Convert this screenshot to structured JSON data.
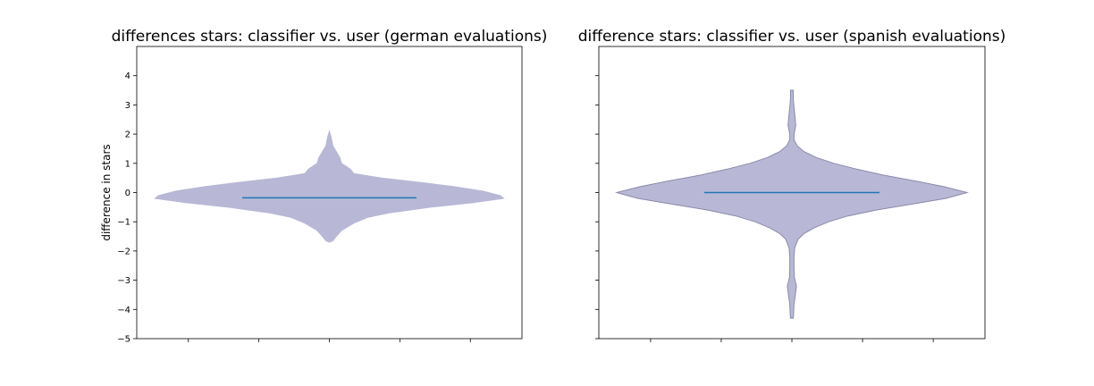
{
  "chart_data": [
    {
      "type": "violin",
      "title": "differences stars: classifier vs. user (german evaluations)",
      "xlabel": "",
      "ylabel": "difference in stars",
      "ylim": [
        -5,
        5
      ],
      "yticks": [
        -5,
        -4,
        -3,
        -2,
        -1,
        0,
        1,
        2,
        3,
        4
      ],
      "ytick_labels": [
        "−5",
        "−4",
        "−3",
        "−2",
        "−1",
        "0",
        "1",
        "2",
        "3",
        "4"
      ],
      "show_ytick_labels": true,
      "xticks_count": 5,
      "fill_color": "#b8b8d6",
      "edge_color": "#b8b8d6",
      "median_color": "#1f77b4",
      "median": -0.18,
      "profile": [
        {
          "y": 2.1,
          "w": 0.0
        },
        {
          "y": 1.9,
          "w": 0.01
        },
        {
          "y": 1.6,
          "w": 0.02
        },
        {
          "y": 1.4,
          "w": 0.04
        },
        {
          "y": 1.2,
          "w": 0.06
        },
        {
          "y": 1.0,
          "w": 0.07
        },
        {
          "y": 0.8,
          "w": 0.12
        },
        {
          "y": 0.65,
          "w": 0.14
        },
        {
          "y": 0.5,
          "w": 0.3
        },
        {
          "y": 0.35,
          "w": 0.52
        },
        {
          "y": 0.2,
          "w": 0.72
        },
        {
          "y": 0.05,
          "w": 0.88
        },
        {
          "y": -0.1,
          "w": 0.98
        },
        {
          "y": -0.2,
          "w": 1.0
        },
        {
          "y": -0.35,
          "w": 0.82
        },
        {
          "y": -0.5,
          "w": 0.58
        },
        {
          "y": -0.7,
          "w": 0.34
        },
        {
          "y": -0.85,
          "w": 0.22
        },
        {
          "y": -1.05,
          "w": 0.14
        },
        {
          "y": -1.3,
          "w": 0.07
        },
        {
          "y": -1.5,
          "w": 0.04
        },
        {
          "y": -1.65,
          "w": 0.02
        },
        {
          "y": -1.7,
          "w": 0.0
        }
      ]
    },
    {
      "type": "violin",
      "title": "difference stars: classifier vs. user (spanish evaluations)",
      "xlabel": "",
      "ylabel": "",
      "ylim": [
        -5,
        5
      ],
      "yticks": [
        -5,
        -4,
        -3,
        -2,
        -1,
        0,
        1,
        2,
        3,
        4
      ],
      "ytick_labels": [],
      "show_ytick_labels": false,
      "xticks_count": 5,
      "fill_color": "#b8b8d6",
      "edge_color": "#8a8aa8",
      "median_color": "#1f77b4",
      "median": 0.0,
      "profile": [
        {
          "y": 3.5,
          "w": 0.008
        },
        {
          "y": 3.2,
          "w": 0.008
        },
        {
          "y": 2.9,
          "w": 0.012
        },
        {
          "y": 2.6,
          "w": 0.018
        },
        {
          "y": 2.3,
          "w": 0.022
        },
        {
          "y": 2.0,
          "w": 0.012
        },
        {
          "y": 1.8,
          "w": 0.012
        },
        {
          "y": 1.6,
          "w": 0.03
        },
        {
          "y": 1.4,
          "w": 0.07
        },
        {
          "y": 1.2,
          "w": 0.14
        },
        {
          "y": 1.0,
          "w": 0.24
        },
        {
          "y": 0.8,
          "w": 0.37
        },
        {
          "y": 0.6,
          "w": 0.52
        },
        {
          "y": 0.4,
          "w": 0.7
        },
        {
          "y": 0.2,
          "w": 0.87
        },
        {
          "y": 0.0,
          "w": 1.0
        },
        {
          "y": -0.2,
          "w": 0.88
        },
        {
          "y": -0.4,
          "w": 0.68
        },
        {
          "y": -0.6,
          "w": 0.48
        },
        {
          "y": -0.8,
          "w": 0.32
        },
        {
          "y": -1.0,
          "w": 0.21
        },
        {
          "y": -1.2,
          "w": 0.13
        },
        {
          "y": -1.4,
          "w": 0.07
        },
        {
          "y": -1.6,
          "w": 0.035
        },
        {
          "y": -1.9,
          "w": 0.016
        },
        {
          "y": -2.2,
          "w": 0.012
        },
        {
          "y": -2.6,
          "w": 0.012
        },
        {
          "y": -2.9,
          "w": 0.014
        },
        {
          "y": -3.2,
          "w": 0.026
        },
        {
          "y": -3.5,
          "w": 0.02
        },
        {
          "y": -3.8,
          "w": 0.012
        },
        {
          "y": -4.1,
          "w": 0.01
        },
        {
          "y": -4.3,
          "w": 0.008
        }
      ]
    }
  ]
}
